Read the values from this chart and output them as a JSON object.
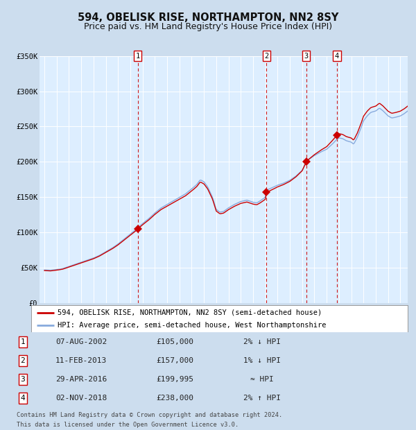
{
  "title": "594, OBELISK RISE, NORTHAMPTON, NN2 8SY",
  "subtitle": "Price paid vs. HM Land Registry's House Price Index (HPI)",
  "legend_line1": "594, OBELISK RISE, NORTHAMPTON, NN2 8SY (semi-detached house)",
  "legend_line2": "HPI: Average price, semi-detached house, West Northamptonshire",
  "footer_line1": "Contains HM Land Registry data © Crown copyright and database right 2024.",
  "footer_line2": "This data is licensed under the Open Government Licence v3.0.",
  "transactions": [
    {
      "num": 1,
      "date": "07-AUG-2002",
      "price": 105000,
      "rel": "2% ↓ HPI",
      "year": 2002.6
    },
    {
      "num": 2,
      "date": "11-FEB-2013",
      "price": 157000,
      "rel": "1% ↓ HPI",
      "year": 2013.1
    },
    {
      "num": 3,
      "date": "29-APR-2016",
      "price": 199995,
      "rel": "≈ HPI",
      "year": 2016.33
    },
    {
      "num": 4,
      "date": "02-NOV-2018",
      "price": 238000,
      "rel": "2% ↑ HPI",
      "year": 2018.83
    }
  ],
  "ylim": [
    0,
    350000
  ],
  "yticks": [
    0,
    50000,
    100000,
    150000,
    200000,
    250000,
    300000,
    350000
  ],
  "ytick_labels": [
    "£0",
    "£50K",
    "£100K",
    "£150K",
    "£200K",
    "£250K",
    "£300K",
    "£350K"
  ],
  "xlim_start": 1994.6,
  "xlim_end": 2024.6,
  "hpi_color": "#88aadd",
  "price_color": "#cc0000",
  "marker_color": "#cc0000",
  "vline_color": "#cc0000",
  "bg_color": "#ccddee",
  "plot_bg": "#ddeeff",
  "grid_color": "#ffffff",
  "box_color": "#cc0000",
  "title_color": "#111111"
}
